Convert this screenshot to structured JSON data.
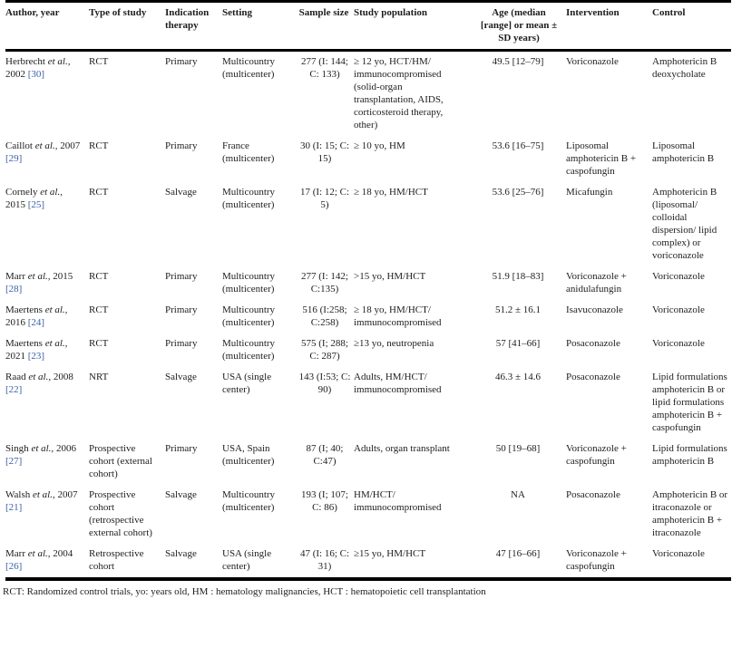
{
  "colors": {
    "citation": "#3b5fa5",
    "text": "#1d1d1f",
    "rule": "#000000"
  },
  "header": {
    "author": "Author, year",
    "type": "Type of study",
    "indication": "Indication therapy",
    "setting": "Setting",
    "sample": "Sample size",
    "population": "Study population",
    "age": "Age (median [range] or mean ± SD years)",
    "intervention": "Intervention",
    "control": "Control"
  },
  "rows": [
    {
      "authors": "Herbrecht",
      "etal": "et al.,",
      "year": "2002",
      "ref": "[30]",
      "type": "RCT",
      "indication": "Primary",
      "setting": "Multicountry (multicenter)",
      "sample": "277 (I: 144; C: 133)",
      "population": "≥ 12 yo, HCT/HM/ immunocompromised (solid-organ transplantation, AIDS, corticosteroid therapy, other)",
      "age": "49.5 [12–79]",
      "intervention": "Voriconazole",
      "control": "Amphotericin B deoxycholate"
    },
    {
      "authors": "Caillot",
      "etal": "et al.,",
      "year": "2007",
      "ref": "[29]",
      "type": "RCT",
      "indication": "Primary",
      "setting": "France (multicenter)",
      "sample": "30 (I: 15; C: 15)",
      "population": "≥ 10 yo, HM",
      "age": "53.6 [16–75]",
      "intervention": "Liposomal amphotericin B + caspofungin",
      "control": "Liposomal amphotericin B"
    },
    {
      "authors": "Cornely",
      "etal": "et al.,",
      "year": "2015",
      "ref": "[25]",
      "type": "RCT",
      "indication": "Salvage",
      "setting": "Multicountry (multicenter)",
      "sample": "17 (I: 12; C: 5)",
      "population": "≥ 18 yo, HM/HCT",
      "age": "53.6 [25–76]",
      "intervention": "Micafungin",
      "control": "Amphotericin B (liposomal/ colloidal dispersion/ lipid complex) or voriconazole"
    },
    {
      "authors": "Marr",
      "etal": "et al.,",
      "year": "2015",
      "ref": "[28]",
      "type": "RCT",
      "indication": "Primary",
      "setting": "Multicountry (multicenter)",
      "sample": "277 (I: 142; C:135)",
      "population": ">15 yo, HM/HCT",
      "age": "51.9 [18–83]",
      "intervention": "Voriconazole + anidulafungin",
      "control": "Voriconazole"
    },
    {
      "authors": "Maertens",
      "etal": "et al.,",
      "year": "2016",
      "ref": "[24]",
      "type": "RCT",
      "indication": "Primary",
      "setting": "Multicountry (multicenter)",
      "sample": "516 (I:258; C:258)",
      "population": "≥ 18 yo, HM/HCT/ immunocompromised",
      "age": "51.2 ± 16.1",
      "intervention": "Isavuconazole",
      "control": "Voriconazole"
    },
    {
      "authors": "Maertens",
      "etal": "et al.,",
      "year": "2021",
      "ref": "[23]",
      "type": "RCT",
      "indication": "Primary",
      "setting": "Multicountry (multicenter)",
      "sample": "575 (I; 288; C: 287)",
      "population": "≥13 yo, neutropenia",
      "age": "57 [41–66]",
      "intervention": "Posaconazole",
      "control": "Voriconazole"
    },
    {
      "authors": "Raad",
      "etal": "et al.,",
      "year": "2008",
      "ref": "[22]",
      "type": "NRT",
      "indication": "Salvage",
      "setting": "USA (single center)",
      "sample": "143 (I:53; C: 90)",
      "population": "Adults, HM/HCT/ immunocompromised",
      "age": "46.3 ± 14.6",
      "intervention": "Posaconazole",
      "control": "Lipid formulations amphotericin B or lipid formulations amphotericin B + caspofungin"
    },
    {
      "authors": "Singh",
      "etal": "et al.,",
      "year": "2006",
      "ref": "[27]",
      "type": "Prospective cohort (external cohort)",
      "indication": "Primary",
      "setting": "USA, Spain (multicenter)",
      "sample": "87 (I; 40; C:47)",
      "population": "Adults, organ transplant",
      "age": "50 [19–68]",
      "intervention": "Voriconazole + caspofungin",
      "control": "Lipid formulations amphotericin B"
    },
    {
      "authors": "Walsh",
      "etal": "et al.,",
      "year": "2007",
      "ref": "[21]",
      "type": "Prospective cohort (retrospective external cohort)",
      "indication": "Salvage",
      "setting": "Multicountry (multicenter)",
      "sample": "193 (I; 107; C: 86)",
      "population": "HM/HCT/ immunocompromised",
      "age": "NA",
      "intervention": "Posaconazole",
      "control": "Amphotericin B or itraconazole or amphotericin B + itraconazole"
    },
    {
      "authors": "Marr",
      "etal": "et al.,",
      "year": "2004",
      "ref": "[26]",
      "type": "Retrospective cohort",
      "indication": "Salvage",
      "setting": "USA (single center)",
      "sample": "47 (I: 16; C: 31)",
      "population": "≥15 yo, HM/HCT",
      "age": "47 [16–66]",
      "intervention": "Voriconazole + caspofungin",
      "control": "Voriconazole"
    }
  ],
  "footnote": "RCT: Randomized control trials, yo: years old, HM : hematology malignancies, HCT : hematopoietic cell transplantation"
}
